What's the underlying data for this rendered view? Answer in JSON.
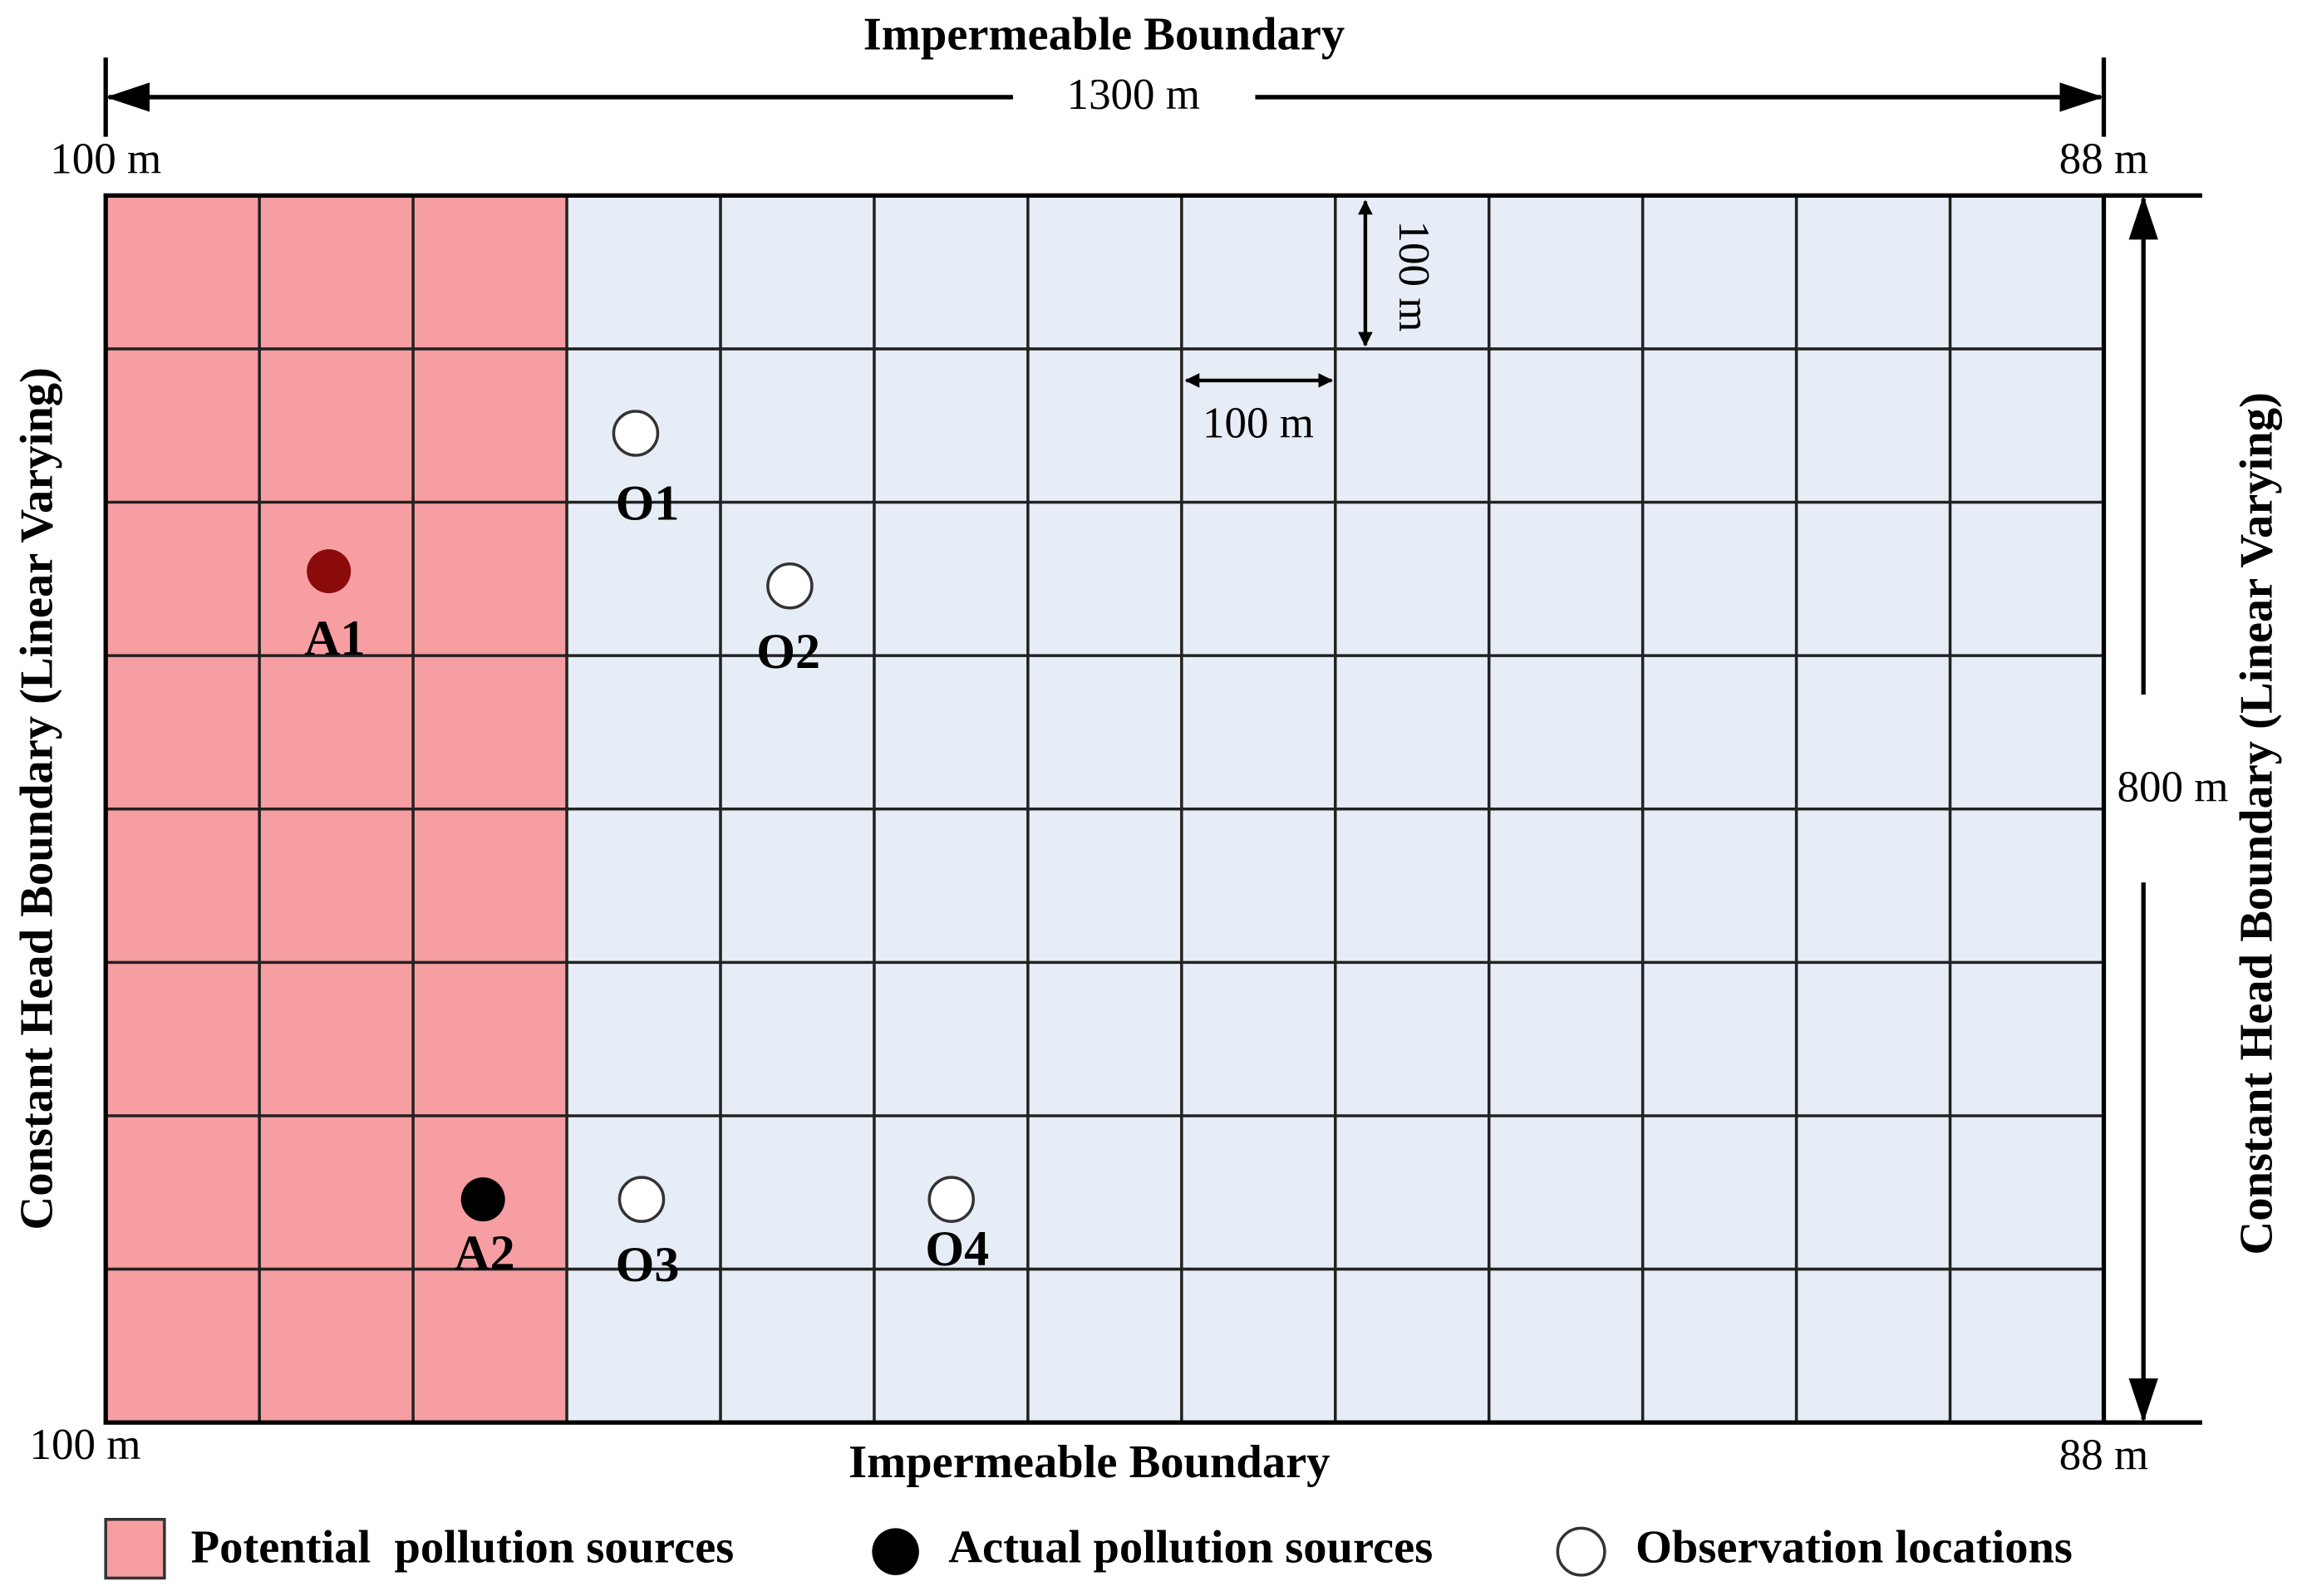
{
  "top_boundary": "Impermeable Boundary",
  "bottom_boundary": "Impermeable Boundary",
  "left_boundary": "Constant Head Boundary (Linear Varying)",
  "right_boundary": "Constant Head Boundary (Linear Varying)",
  "width_label": "1300 m",
  "height_label": "800 m",
  "cell_width_label": "100 m",
  "cell_height_label": "100 m",
  "corner_labels": {
    "top_left": "100 m",
    "top_right": "88 m",
    "bottom_left": "100 m",
    "bottom_right": "88 m"
  },
  "nodes": [
    {
      "label": "A1"
    },
    {
      "label": "A2"
    },
    {
      "label": "O1"
    },
    {
      "label": "O2"
    },
    {
      "label": "O3"
    },
    {
      "label": "O4"
    }
  ],
  "legend": [
    {
      "label": "Potential  pollution sources"
    },
    {
      "label": "Actual pollution sources"
    },
    {
      "label": "Observation locations"
    }
  ]
}
